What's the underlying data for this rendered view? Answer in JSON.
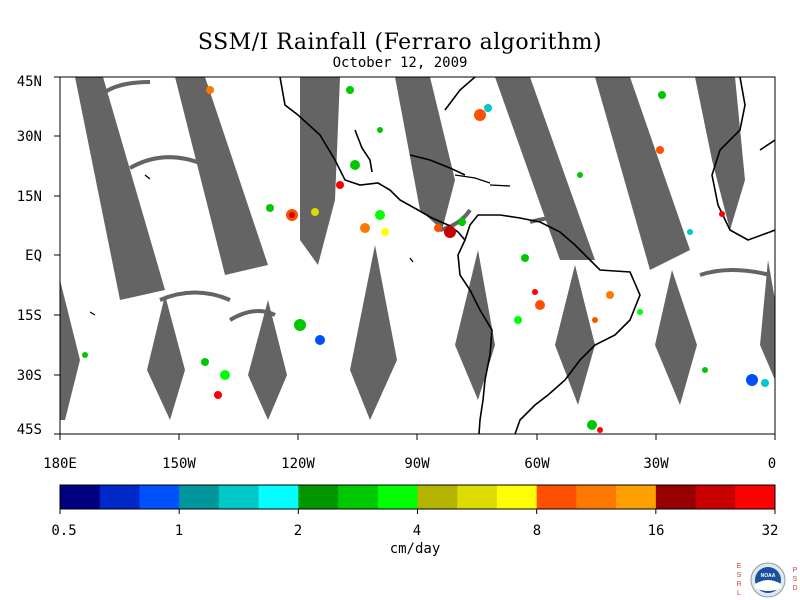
{
  "title": "SSM/I Rainfall (Ferraro algorithm)",
  "subtitle": "October 12, 2009",
  "lat_labels": [
    "45N",
    "30N",
    "15N",
    "EQ",
    "15S",
    "30S",
    "45S"
  ],
  "lon_labels": [
    "180E",
    "150W",
    "120W",
    "90W",
    "60W",
    "30W",
    "0"
  ],
  "colorbar": {
    "labels": [
      "0.5",
      "1",
      "2",
      "4",
      "8",
      "16",
      "32"
    ],
    "units": "cm/day",
    "colors": [
      "#000080",
      "#0028c8",
      "#0050ff",
      "#00969b",
      "#00c8c8",
      "#00ffff",
      "#009600",
      "#00c800",
      "#00ff00",
      "#b4b400",
      "#dcdc00",
      "#ffff00",
      "#ff5000",
      "#ff7800",
      "#ffa000",
      "#960000",
      "#c80000",
      "#ff0000"
    ]
  },
  "logo": {
    "left_text": "ESRL",
    "right_text": "PSD",
    "center_text": "NOAA"
  },
  "map_colors": {
    "no_data_swath": "#646464",
    "land_outline": "#000000",
    "background": "#ffffff"
  }
}
